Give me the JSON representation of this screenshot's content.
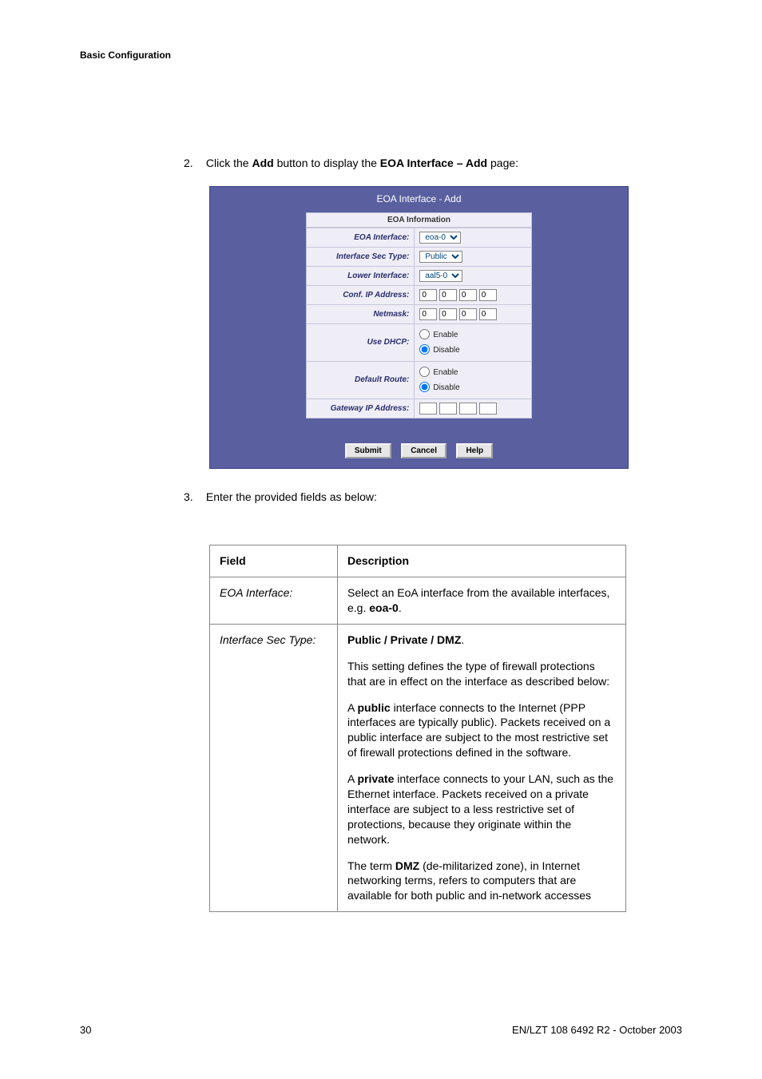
{
  "header": {
    "section": "Basic Configuration"
  },
  "steps": {
    "s2": {
      "num": "2.",
      "pre": "Click the ",
      "mid": "Add",
      "mid2": " button to display the ",
      "mid3": "EOA Interface – Add",
      "post": " page:"
    },
    "s3": {
      "num": "3.",
      "text": "Enter the provided fields as below:"
    }
  },
  "eoa": {
    "title": "EOA Interface - Add",
    "info": "EOA Information",
    "rows": {
      "iface": {
        "label": "EOA Interface:",
        "sel": "eoa-0"
      },
      "sectype": {
        "label": "Interface Sec Type:",
        "sel": "Public"
      },
      "lower": {
        "label": "Lower Interface:",
        "sel": "aal5-0"
      },
      "conf": {
        "label": "Conf. IP Address:",
        "o1": "0",
        "o2": "0",
        "o3": "0",
        "o4": "0"
      },
      "netmask": {
        "label": "Netmask:",
        "o1": "0",
        "o2": "0",
        "o3": "0",
        "o4": "0"
      },
      "dhcp": {
        "label": "Use DHCP:",
        "en": "Enable",
        "dis": "Disable"
      },
      "route": {
        "label": "Default Route:",
        "en": "Enable",
        "dis": "Disable"
      },
      "gw": {
        "label": "Gateway IP Address:"
      }
    },
    "buttons": {
      "submit": "Submit",
      "cancel": "Cancel",
      "help": "Help"
    }
  },
  "table": {
    "head": {
      "field": "Field",
      "desc": "Description"
    },
    "row1": {
      "field": "EOA Interface:",
      "d1a": "Select an EoA interface from the available interfaces, e.g. ",
      "d1b": "eoa-0",
      "d1c": "."
    },
    "row2": {
      "field": "Interface Sec Type:",
      "p1a": "Public / Private / DMZ",
      "p1b": ".",
      "p2": "This setting defines the type of firewall protections that are in effect on the interface as described below:",
      "p3a": "A ",
      "p3b": "public",
      "p3c": " interface connects to the Internet (PPP interfaces are typically public). Packets received on a public interface are subject to the most restrictive set of firewall protections defined in the software.",
      "p4a": "A ",
      "p4b": "private",
      "p4c": " interface connects to your LAN, such as the Ethernet interface. Packets received on a private interface are subject to a less restrictive set of protections, because they originate within the network.",
      "p5a": "The term ",
      "p5b": "DMZ",
      "p5c": " (de-militarized zone), in Internet networking terms, refers to computers that are available for both public and in-network accesses"
    }
  },
  "footer": {
    "page": "30",
    "ref": "EN/LZT 108 6492 R2  - October 2003"
  }
}
